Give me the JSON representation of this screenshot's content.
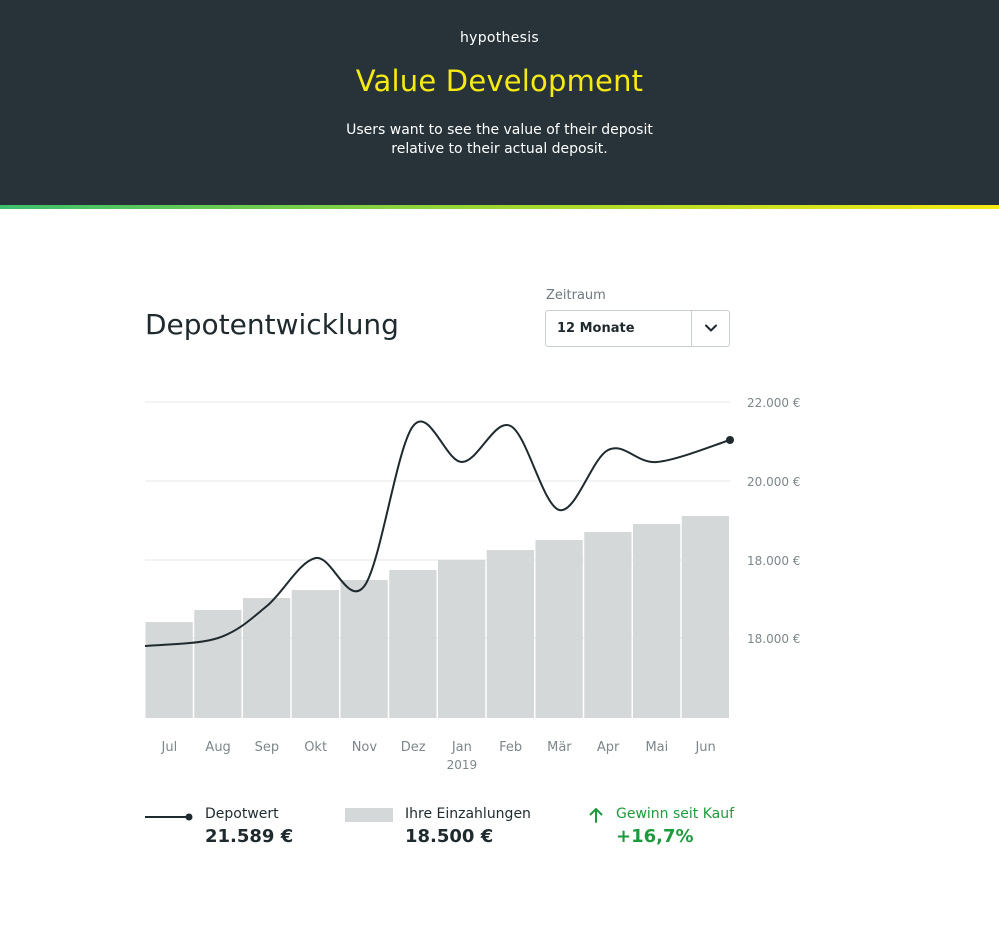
{
  "hero": {
    "eyebrow": "hypothesis",
    "title": "Value Development",
    "subtitle_line1": "Users want to see the value of their deposit",
    "subtitle_line2": "relative to their actual deposit.",
    "background_color": "#273338",
    "title_color": "#f5ea14"
  },
  "section": {
    "title": "Depotentwicklung"
  },
  "period_select": {
    "label": "Zeitraum",
    "value": "12 Monate",
    "icon": "chevron-down-icon"
  },
  "chart_data": {
    "type": "bar+line",
    "categories": [
      "Jul",
      "Aug",
      "Sep",
      "Okt",
      "Nov",
      "Dez",
      "Jan",
      "Feb",
      "Mär",
      "Apr",
      "Mai",
      "Jun"
    ],
    "year_label": "2019",
    "y_tick_labels": [
      "22.000 €",
      "20.000 €",
      "18.000 €",
      "18.000 €"
    ],
    "series": [
      {
        "name": "Ihre Einzahlungen",
        "kind": "bar",
        "color": "#d5d8d9",
        "values": [
          16500,
          16800,
          17100,
          17300,
          17550,
          17800,
          18050,
          18300,
          18550,
          18750,
          18950,
          19150
        ]
      },
      {
        "name": "Depotwert",
        "kind": "line",
        "color": "#1f2a2e",
        "values": [
          15900,
          16100,
          16900,
          18100,
          17400,
          21400,
          20500,
          21400,
          19300,
          20800,
          20500,
          21050
        ]
      }
    ],
    "grid": true
  },
  "legend": {
    "depot_label": "Depotwert",
    "depot_value": "21.589 €",
    "deposits_label": "Ihre Einzahlungen",
    "deposits_value": "18.500 €",
    "gain_label": "Gewinn seit Kauf",
    "gain_value": "+16,7%",
    "gain_color": "#1e9a3e"
  }
}
